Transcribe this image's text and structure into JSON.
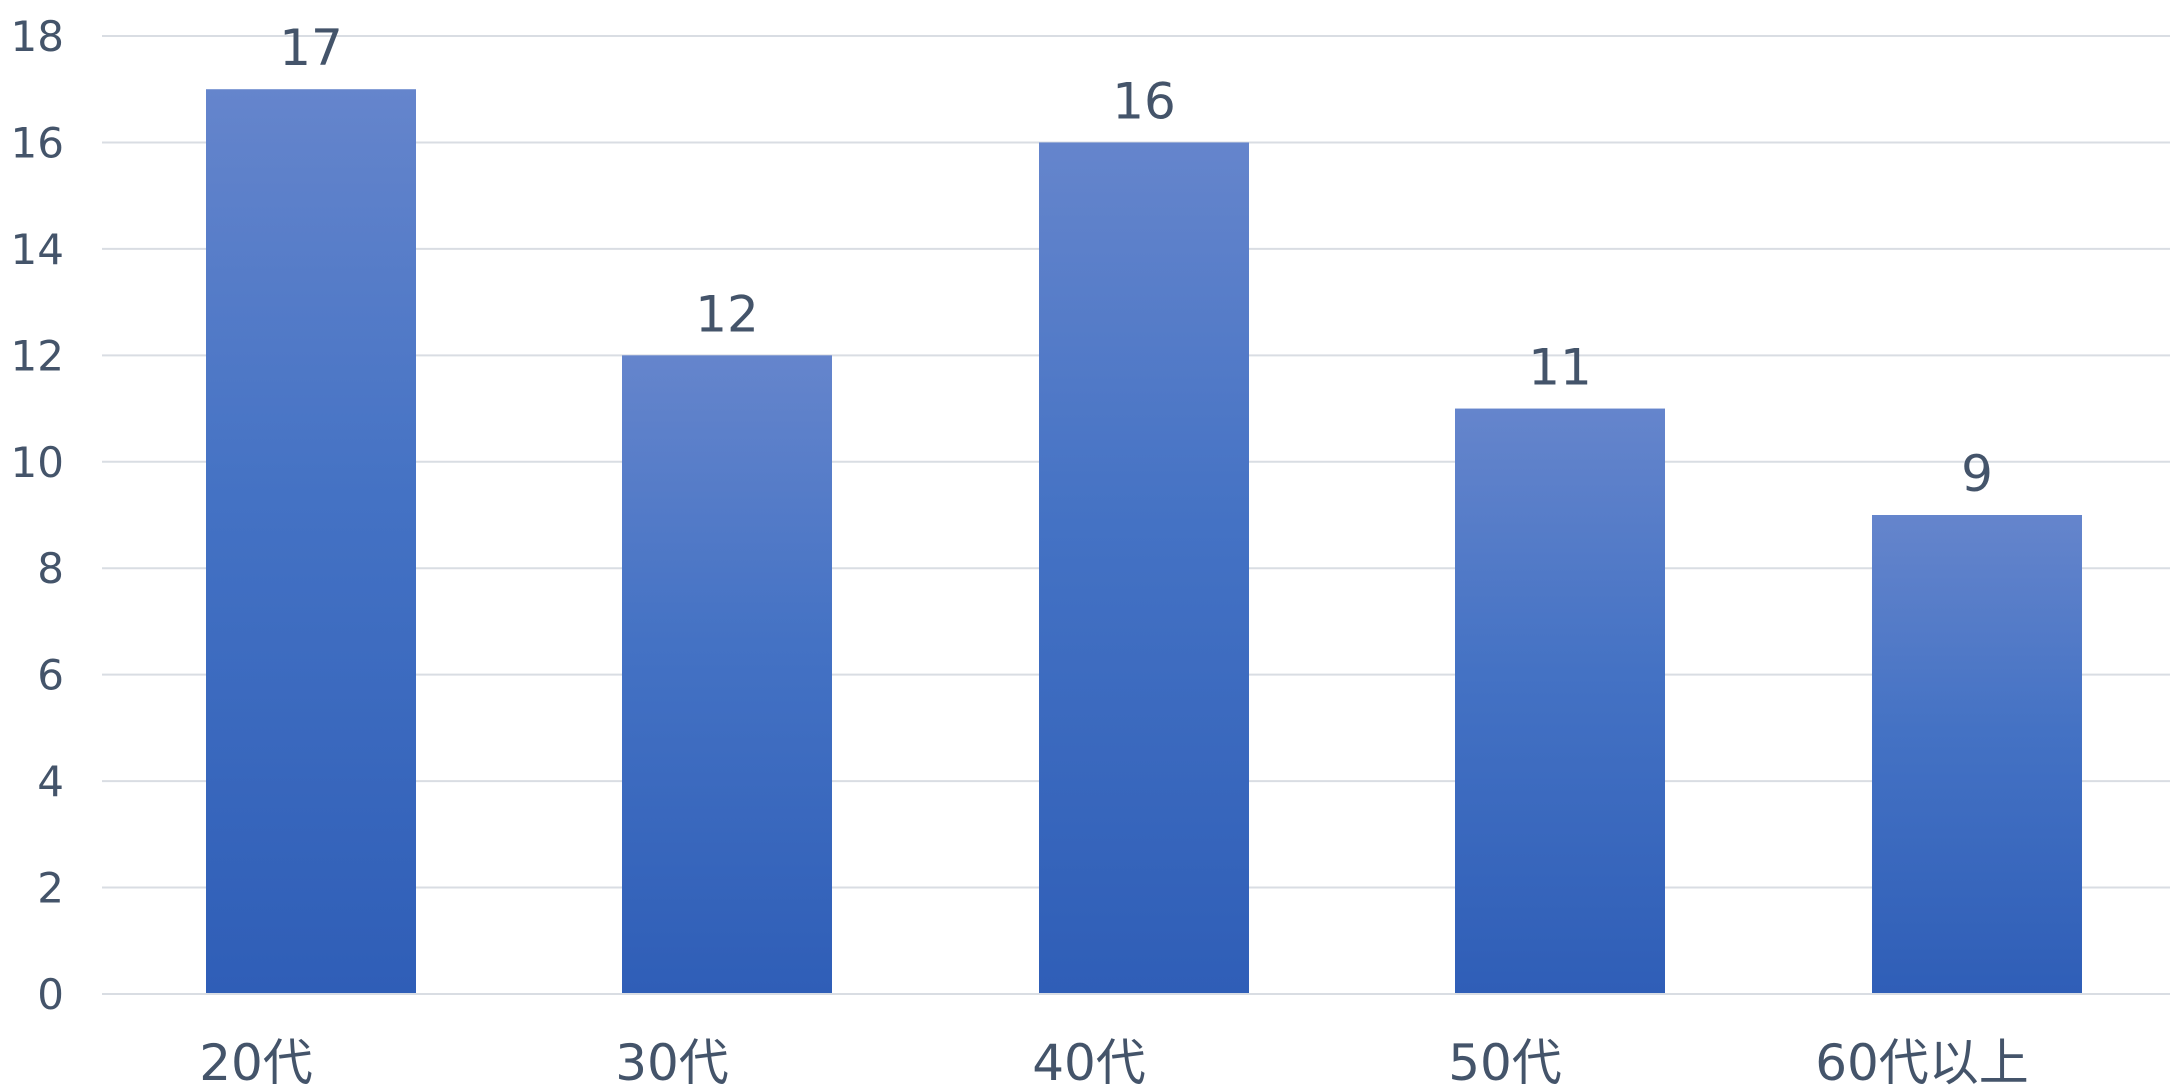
{
  "chart_data": {
    "type": "bar",
    "categories": [
      "20代",
      "30代",
      "40代",
      "50代",
      "60代以上"
    ],
    "values": [
      17,
      12,
      16,
      11,
      9
    ],
    "data_labels": [
      "17",
      "12",
      "16",
      "11",
      "9"
    ],
    "ylim": [
      0,
      18
    ],
    "y_ticks": [
      0,
      2,
      4,
      6,
      8,
      10,
      12,
      14,
      16,
      18
    ],
    "y_tick_labels": [
      "0",
      "2",
      "4",
      "6",
      "8",
      "10",
      "12",
      "14",
      "16",
      "18"
    ],
    "grid": true,
    "legend": "none",
    "title": "",
    "xlabel": "",
    "ylabel": ""
  },
  "colors": {
    "bar_top": "#6585cc",
    "bar_middle": "#4472c4",
    "bar_bottom": "#2f5eb7",
    "grid": "#d9dde3",
    "text": "#44546a"
  }
}
